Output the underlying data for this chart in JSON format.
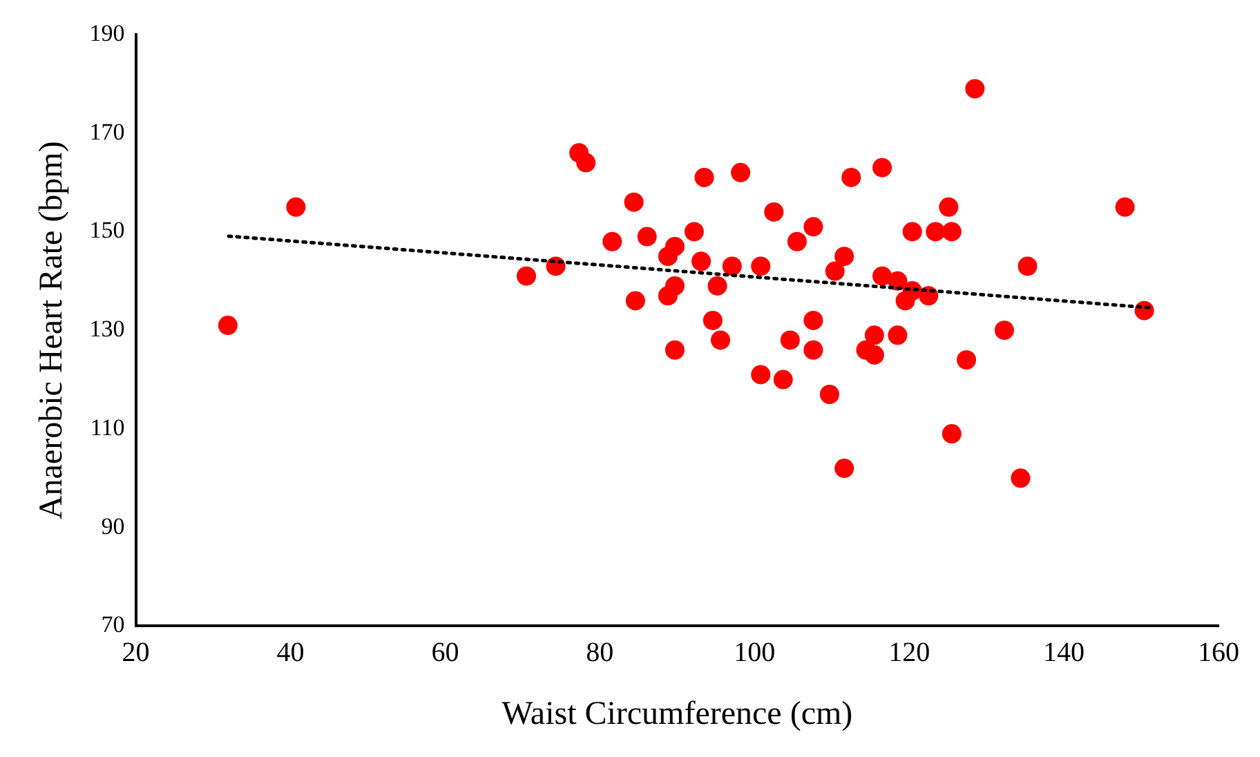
{
  "chart_data": {
    "type": "scatter",
    "xlabel": "Waist Circumference (cm)",
    "ylabel": "Anaerobic Heart Rate (bpm)",
    "xlim": [
      20,
      160
    ],
    "xticks": [
      20,
      40,
      60,
      80,
      100,
      120,
      140,
      160
    ],
    "ylim": [
      70,
      190
    ],
    "yticks": [
      70,
      90,
      110,
      130,
      150,
      170,
      190
    ],
    "grid": false,
    "legend": false,
    "marker": "circle",
    "series": [
      {
        "color": "#ff0000",
        "x": [
          31.9,
          40.7,
          70.5,
          74.3,
          77.3,
          78.2,
          81.6,
          84.4,
          84.6,
          86.1,
          88.8,
          89.7,
          88.8,
          89.7,
          89.7,
          92.2,
          93.1,
          93.5,
          94.6,
          95.2,
          95.6,
          97.1,
          98.2,
          100.8,
          102.5,
          100.8,
          103.7,
          105.5,
          107.6,
          104.6,
          107.6,
          107.6,
          109.7,
          110.4,
          111.6,
          112.5,
          116.5,
          111.6,
          116.5,
          115.5,
          114.4,
          115.5,
          128.5,
          125.1,
          147.9,
          120.4,
          123.4,
          125.5,
          135.3,
          118.5,
          120.4,
          119.5,
          122.5,
          150.4,
          118.5,
          132.3,
          127.4,
          125.5,
          134.4
        ],
        "values": [
          131,
          155,
          141,
          143,
          166,
          164,
          148,
          156,
          136,
          149,
          145,
          147,
          137,
          139,
          126,
          150,
          144,
          161,
          132,
          139,
          128,
          143,
          162,
          143,
          154,
          121,
          120,
          148,
          151,
          128,
          132,
          126,
          117,
          142,
          145,
          161,
          163,
          102,
          141,
          129,
          126,
          125,
          179,
          155,
          155,
          150,
          150,
          150,
          143,
          140,
          138,
          136,
          137,
          134,
          129,
          130,
          124,
          109,
          100
        ]
      },
      {
        "type": "line",
        "color": "#000000",
        "marker": "none",
        "line_style": "dotted",
        "x": [
          32,
          151
        ],
        "values": [
          149.1,
          134.6
        ]
      }
    ]
  }
}
